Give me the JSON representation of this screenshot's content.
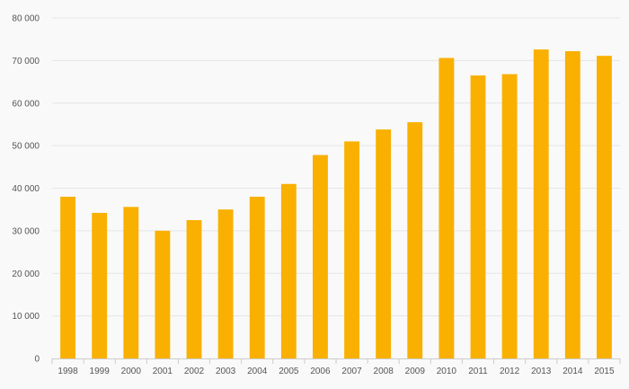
{
  "chart_data": {
    "type": "bar",
    "title": "",
    "xlabel": "",
    "ylabel": "",
    "categories": [
      "1998",
      "1999",
      "2000",
      "2001",
      "2002",
      "2003",
      "2004",
      "2005",
      "2006",
      "2007",
      "2008",
      "2009",
      "2010",
      "2011",
      "2012",
      "2013",
      "2014",
      "2015"
    ],
    "values": [
      38000,
      34200,
      35600,
      30000,
      32500,
      35000,
      38000,
      41000,
      47800,
      51000,
      53800,
      55500,
      70600,
      66500,
      66800,
      72600,
      72200,
      71100
    ],
    "ylim": [
      0,
      80000
    ],
    "yticks": [
      0,
      10000,
      20000,
      30000,
      40000,
      50000,
      60000,
      70000,
      80000
    ],
    "ytick_labels": [
      "0",
      "10 000",
      "20 000",
      "30 000",
      "40 000",
      "50 000",
      "60 000",
      "70 000",
      "80 000"
    ],
    "grid": true,
    "colors": {
      "bar": "#f9b000",
      "grid": "#e6e6e6",
      "axis": "#cccccc",
      "text": "#555555"
    }
  }
}
